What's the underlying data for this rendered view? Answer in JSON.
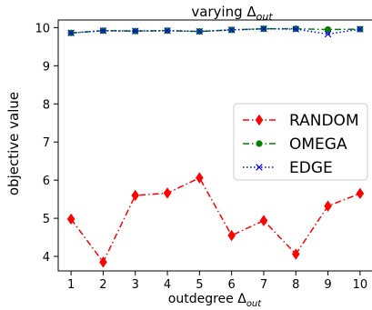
{
  "chart_data": {
    "type": "line",
    "title": "varying Δ",
    "title_sub": "out",
    "xlabel": "outdegree Δ",
    "xlabel_sub": "out",
    "ylabel": "objective value",
    "x": [
      1,
      2,
      3,
      4,
      5,
      6,
      7,
      8,
      9,
      10
    ],
    "xlim": [
      0.6,
      10.4
    ],
    "ylim": [
      3.62,
      10.2
    ],
    "yticks": [
      4,
      5,
      6,
      7,
      8,
      9,
      10
    ],
    "grid": false,
    "legend_position": "right",
    "series": [
      {
        "name": "RANDOM",
        "color": "#ff0000",
        "marker": "diamond",
        "linestyle": "dash-dot",
        "values": [
          4.98,
          3.85,
          5.6,
          5.66,
          6.06,
          4.55,
          4.94,
          4.06,
          5.32,
          5.65
        ]
      },
      {
        "name": "OMEGA",
        "color": "#008000",
        "marker": "circle",
        "linestyle": "dash-dot",
        "values": [
          9.86,
          9.92,
          9.91,
          9.92,
          9.9,
          9.94,
          9.97,
          9.97,
          9.95,
          9.96
        ]
      },
      {
        "name": "EDGE",
        "color": "#0000ff",
        "marker": "x",
        "linestyle": "dotted",
        "values": [
          9.86,
          9.92,
          9.91,
          9.92,
          9.9,
          9.94,
          9.97,
          9.96,
          9.83,
          9.96
        ]
      }
    ]
  }
}
